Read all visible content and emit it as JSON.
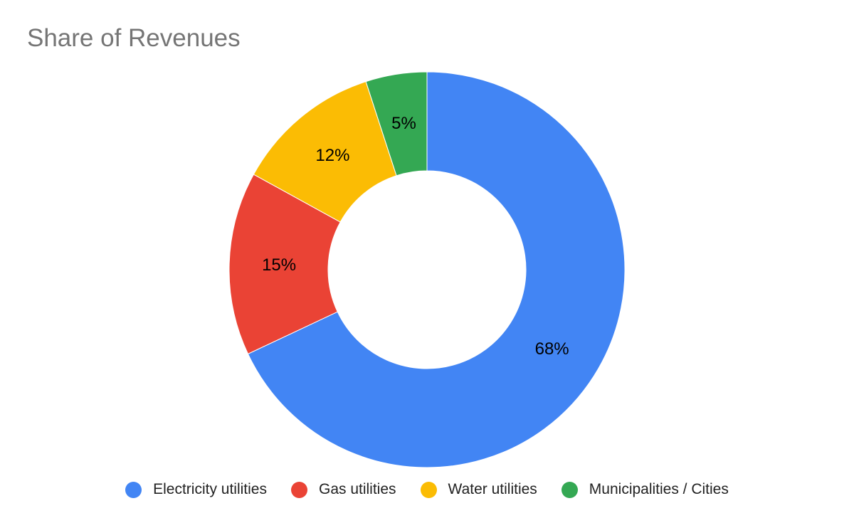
{
  "chart_data": {
    "type": "pie",
    "donut": true,
    "title": "Share of Revenues",
    "categories": [
      "Electricity utilities",
      "Gas utilities",
      "Water utilities",
      "Municipalities / Cities"
    ],
    "values": [
      68,
      15,
      12,
      5
    ],
    "value_labels": [
      "68%",
      "15%",
      "12%",
      "5%"
    ],
    "colors": [
      "#4285F4",
      "#EA4335",
      "#FBBC04",
      "#34A853"
    ],
    "legend_position": "bottom"
  }
}
